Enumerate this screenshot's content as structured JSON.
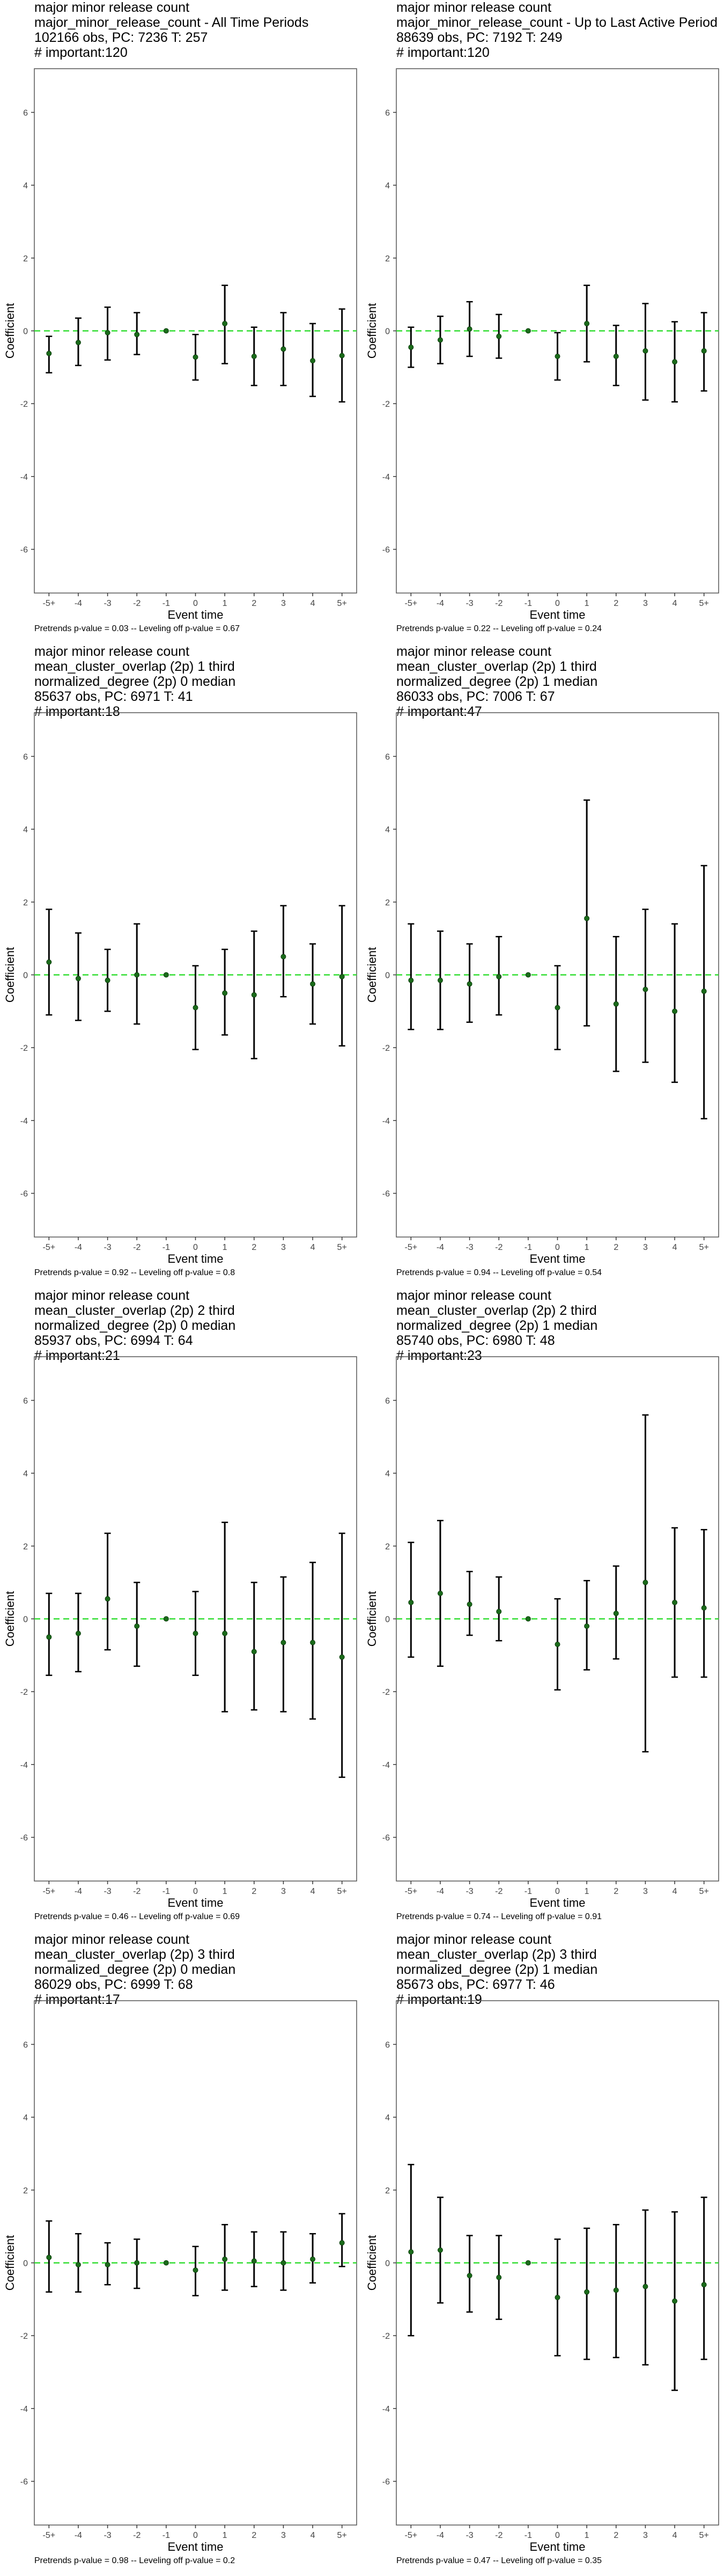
{
  "style": {
    "zero_line_color": "#33dd33",
    "point_color": "#1a6b1a",
    "bar_color": "#000000",
    "frame_color": "#555555"
  },
  "chart_data": [
    {
      "type": "scatter",
      "titles": [
        "major minor release count",
        "major_minor_release_count - All Time Periods",
        "102166 obs, PC: 7236 T: 257",
        "# important:120"
      ],
      "xlabel": "Event time",
      "ylabel": "Coefficient",
      "categories": [
        "-5+",
        "-4",
        "-3",
        "-2",
        "-1",
        "0",
        "1",
        "2",
        "3",
        "4",
        "5+"
      ],
      "yticks": [
        -6,
        -4,
        -2,
        0,
        2,
        4,
        6
      ],
      "ylim": [
        -7.2,
        7.2
      ],
      "coef": [
        -0.62,
        -0.32,
        -0.05,
        -0.1,
        0,
        -0.72,
        0.2,
        -0.7,
        -0.5,
        -0.82,
        -0.68
      ],
      "ci_low": [
        -1.15,
        -0.95,
        -0.8,
        -0.65,
        0,
        -1.35,
        -0.9,
        -1.5,
        -1.5,
        -1.8,
        -1.95
      ],
      "ci_high": [
        -0.15,
        0.35,
        0.65,
        0.5,
        0,
        -0.1,
        1.25,
        0.1,
        0.5,
        0.2,
        0.6
      ],
      "footer": "Pretrends p-value = 0.03 -- Leveling off p-value = 0.67"
    },
    {
      "type": "scatter",
      "titles": [
        "major minor release count",
        "major_minor_release_count - Up to Last Active Period",
        "88639 obs, PC: 7192 T: 249",
        "# important:120"
      ],
      "xlabel": "Event time",
      "ylabel": "Coefficient",
      "categories": [
        "-5+",
        "-4",
        "-3",
        "-2",
        "-1",
        "0",
        "1",
        "2",
        "3",
        "4",
        "5+"
      ],
      "yticks": [
        -6,
        -4,
        -2,
        0,
        2,
        4,
        6
      ],
      "ylim": [
        -7.2,
        7.2
      ],
      "coef": [
        -0.45,
        -0.25,
        0.05,
        -0.15,
        0,
        -0.7,
        0.2,
        -0.7,
        -0.55,
        -0.85,
        -0.55
      ],
      "ci_low": [
        -1.0,
        -0.9,
        -0.7,
        -0.75,
        0,
        -1.35,
        -0.85,
        -1.5,
        -1.9,
        -1.95,
        -1.65
      ],
      "ci_high": [
        0.1,
        0.4,
        0.8,
        0.45,
        0,
        -0.05,
        1.25,
        0.15,
        0.75,
        0.25,
        0.5
      ],
      "footer": "Pretrends p-value = 0.22 -- Leveling off p-value = 0.24"
    },
    {
      "type": "scatter",
      "titles": [
        "major minor release count",
        "mean_cluster_overlap (2p) 1 third",
        "normalized_degree (2p) 0 median",
        "85637 obs, PC: 6971 T: 41",
        "# important:18"
      ],
      "xlabel": "Event time",
      "ylabel": "Coefficient",
      "categories": [
        "-5+",
        "-4",
        "-3",
        "-2",
        "-1",
        "0",
        "1",
        "2",
        "3",
        "4",
        "5+"
      ],
      "yticks": [
        -6,
        -4,
        -2,
        0,
        2,
        4,
        6
      ],
      "ylim": [
        -7.2,
        7.2
      ],
      "coef": [
        0.35,
        -0.1,
        -0.15,
        0.0,
        0,
        -0.9,
        -0.5,
        -0.55,
        0.5,
        -0.25,
        -0.05
      ],
      "ci_low": [
        -1.1,
        -1.25,
        -1.0,
        -1.35,
        0,
        -2.05,
        -1.65,
        -2.3,
        -0.6,
        -1.35,
        -1.95
      ],
      "ci_high": [
        1.8,
        1.15,
        0.7,
        1.4,
        0,
        0.25,
        0.7,
        1.2,
        1.9,
        0.85,
        1.9
      ],
      "footer": "Pretrends p-value = 0.92 -- Leveling off p-value = 0.8"
    },
    {
      "type": "scatter",
      "titles": [
        "major minor release count",
        "mean_cluster_overlap (2p) 1 third",
        "normalized_degree (2p) 1 median",
        "86033 obs, PC: 7006 T: 67",
        "# important:47"
      ],
      "xlabel": "Event time",
      "ylabel": "Coefficient",
      "categories": [
        "-5+",
        "-4",
        "-3",
        "-2",
        "-1",
        "0",
        "1",
        "2",
        "3",
        "4",
        "5+"
      ],
      "yticks": [
        -6,
        -4,
        -2,
        0,
        2,
        4,
        6
      ],
      "ylim": [
        -7.2,
        7.2
      ],
      "coef": [
        -0.15,
        -0.15,
        -0.25,
        -0.05,
        0,
        -0.9,
        1.55,
        -0.8,
        -0.4,
        -1.0,
        -0.45
      ],
      "ci_low": [
        -1.5,
        -1.5,
        -1.3,
        -1.1,
        0,
        -2.05,
        -1.4,
        -2.65,
        -2.4,
        -2.95,
        -3.95
      ],
      "ci_high": [
        1.4,
        1.2,
        0.85,
        1.05,
        0,
        0.25,
        4.8,
        1.05,
        1.8,
        1.4,
        3.0
      ],
      "footer": "Pretrends p-value = 0.94 -- Leveling off p-value = 0.54"
    },
    {
      "type": "scatter",
      "titles": [
        "major minor release count",
        "mean_cluster_overlap (2p) 2 third",
        "normalized_degree (2p) 0 median",
        "85937 obs, PC: 6994 T: 64",
        "# important:21"
      ],
      "xlabel": "Event time",
      "ylabel": "Coefficient",
      "categories": [
        "-5+",
        "-4",
        "-3",
        "-2",
        "-1",
        "0",
        "1",
        "2",
        "3",
        "4",
        "5+"
      ],
      "yticks": [
        -6,
        -4,
        -2,
        0,
        2,
        4,
        6
      ],
      "ylim": [
        -7.2,
        7.2
      ],
      "coef": [
        -0.5,
        -0.4,
        0.55,
        -0.2,
        0,
        -0.4,
        -0.4,
        -0.9,
        -0.65,
        -0.65,
        -1.05
      ],
      "ci_low": [
        -1.55,
        -1.45,
        -0.85,
        -1.3,
        0,
        -1.55,
        -2.55,
        -2.5,
        -2.55,
        -2.75,
        -4.35
      ],
      "ci_high": [
        0.7,
        0.7,
        2.35,
        1.0,
        0,
        0.75,
        2.65,
        1.0,
        1.15,
        1.55,
        2.35
      ],
      "footer": "Pretrends p-value = 0.46 -- Leveling off p-value = 0.69"
    },
    {
      "type": "scatter",
      "titles": [
        "major minor release count",
        "mean_cluster_overlap (2p) 2 third",
        "normalized_degree (2p) 1 median",
        "85740 obs, PC: 6980 T: 48",
        "# important:23"
      ],
      "xlabel": "Event time",
      "ylabel": "Coefficient",
      "categories": [
        "-5+",
        "-4",
        "-3",
        "-2",
        "-1",
        "0",
        "1",
        "2",
        "3",
        "4",
        "5+"
      ],
      "yticks": [
        -6,
        -4,
        -2,
        0,
        2,
        4,
        6
      ],
      "ylim": [
        -7.2,
        7.2
      ],
      "coef": [
        0.45,
        0.7,
        0.4,
        0.2,
        0,
        -0.7,
        -0.2,
        0.15,
        1.0,
        0.45,
        0.3
      ],
      "ci_low": [
        -1.05,
        -1.3,
        -0.45,
        -0.6,
        0,
        -1.95,
        -1.4,
        -1.1,
        -3.65,
        -1.6,
        -1.6
      ],
      "ci_high": [
        2.1,
        2.7,
        1.3,
        1.15,
        0,
        0.55,
        1.05,
        1.45,
        5.6,
        2.5,
        2.45
      ],
      "footer": "Pretrends p-value = 0.74 -- Leveling off p-value = 0.91"
    },
    {
      "type": "scatter",
      "titles": [
        "major minor release count",
        "mean_cluster_overlap (2p) 3 third",
        "normalized_degree (2p) 0 median",
        "86029 obs, PC: 6999 T: 68",
        "# important:17"
      ],
      "xlabel": "Event time",
      "ylabel": "Coefficient",
      "categories": [
        "-5+",
        "-4",
        "-3",
        "-2",
        "-1",
        "0",
        "1",
        "2",
        "3",
        "4",
        "5+"
      ],
      "yticks": [
        -6,
        -4,
        -2,
        0,
        2,
        4,
        6
      ],
      "ylim": [
        -7.2,
        7.2
      ],
      "coef": [
        0.15,
        -0.05,
        -0.05,
        0.0,
        0,
        -0.2,
        0.1,
        0.05,
        0.0,
        0.1,
        0.55
      ],
      "ci_low": [
        -0.8,
        -0.8,
        -0.6,
        -0.7,
        0,
        -0.9,
        -0.75,
        -0.65,
        -0.75,
        -0.55,
        -0.1
      ],
      "ci_high": [
        1.15,
        0.8,
        0.55,
        0.65,
        0,
        0.45,
        1.05,
        0.85,
        0.85,
        0.8,
        1.35
      ],
      "footer": "Pretrends p-value = 0.98 -- Leveling off p-value = 0.2"
    },
    {
      "type": "scatter",
      "titles": [
        "major minor release count",
        "mean_cluster_overlap (2p) 3 third",
        "normalized_degree (2p) 1 median",
        "85673 obs, PC: 6977 T: 46",
        "# important:19"
      ],
      "xlabel": "Event time",
      "ylabel": "Coefficient",
      "categories": [
        "-5+",
        "-4",
        "-3",
        "-2",
        "-1",
        "0",
        "1",
        "2",
        "3",
        "4",
        "5+"
      ],
      "yticks": [
        -6,
        -4,
        -2,
        0,
        2,
        4,
        6
      ],
      "ylim": [
        -7.2,
        7.2
      ],
      "coef": [
        0.3,
        0.35,
        -0.35,
        -0.4,
        0,
        -0.95,
        -0.8,
        -0.75,
        -0.65,
        -1.05,
        -0.6
      ],
      "ci_low": [
        -2.0,
        -1.1,
        -1.35,
        -1.55,
        0,
        -2.55,
        -2.65,
        -2.6,
        -2.8,
        -3.5,
        -2.65
      ],
      "ci_high": [
        2.7,
        1.8,
        0.75,
        0.75,
        0,
        0.65,
        0.95,
        1.05,
        1.45,
        1.4,
        1.8
      ],
      "footer": "Pretrends p-value = 0.47 -- Leveling off p-value = 0.35"
    }
  ]
}
